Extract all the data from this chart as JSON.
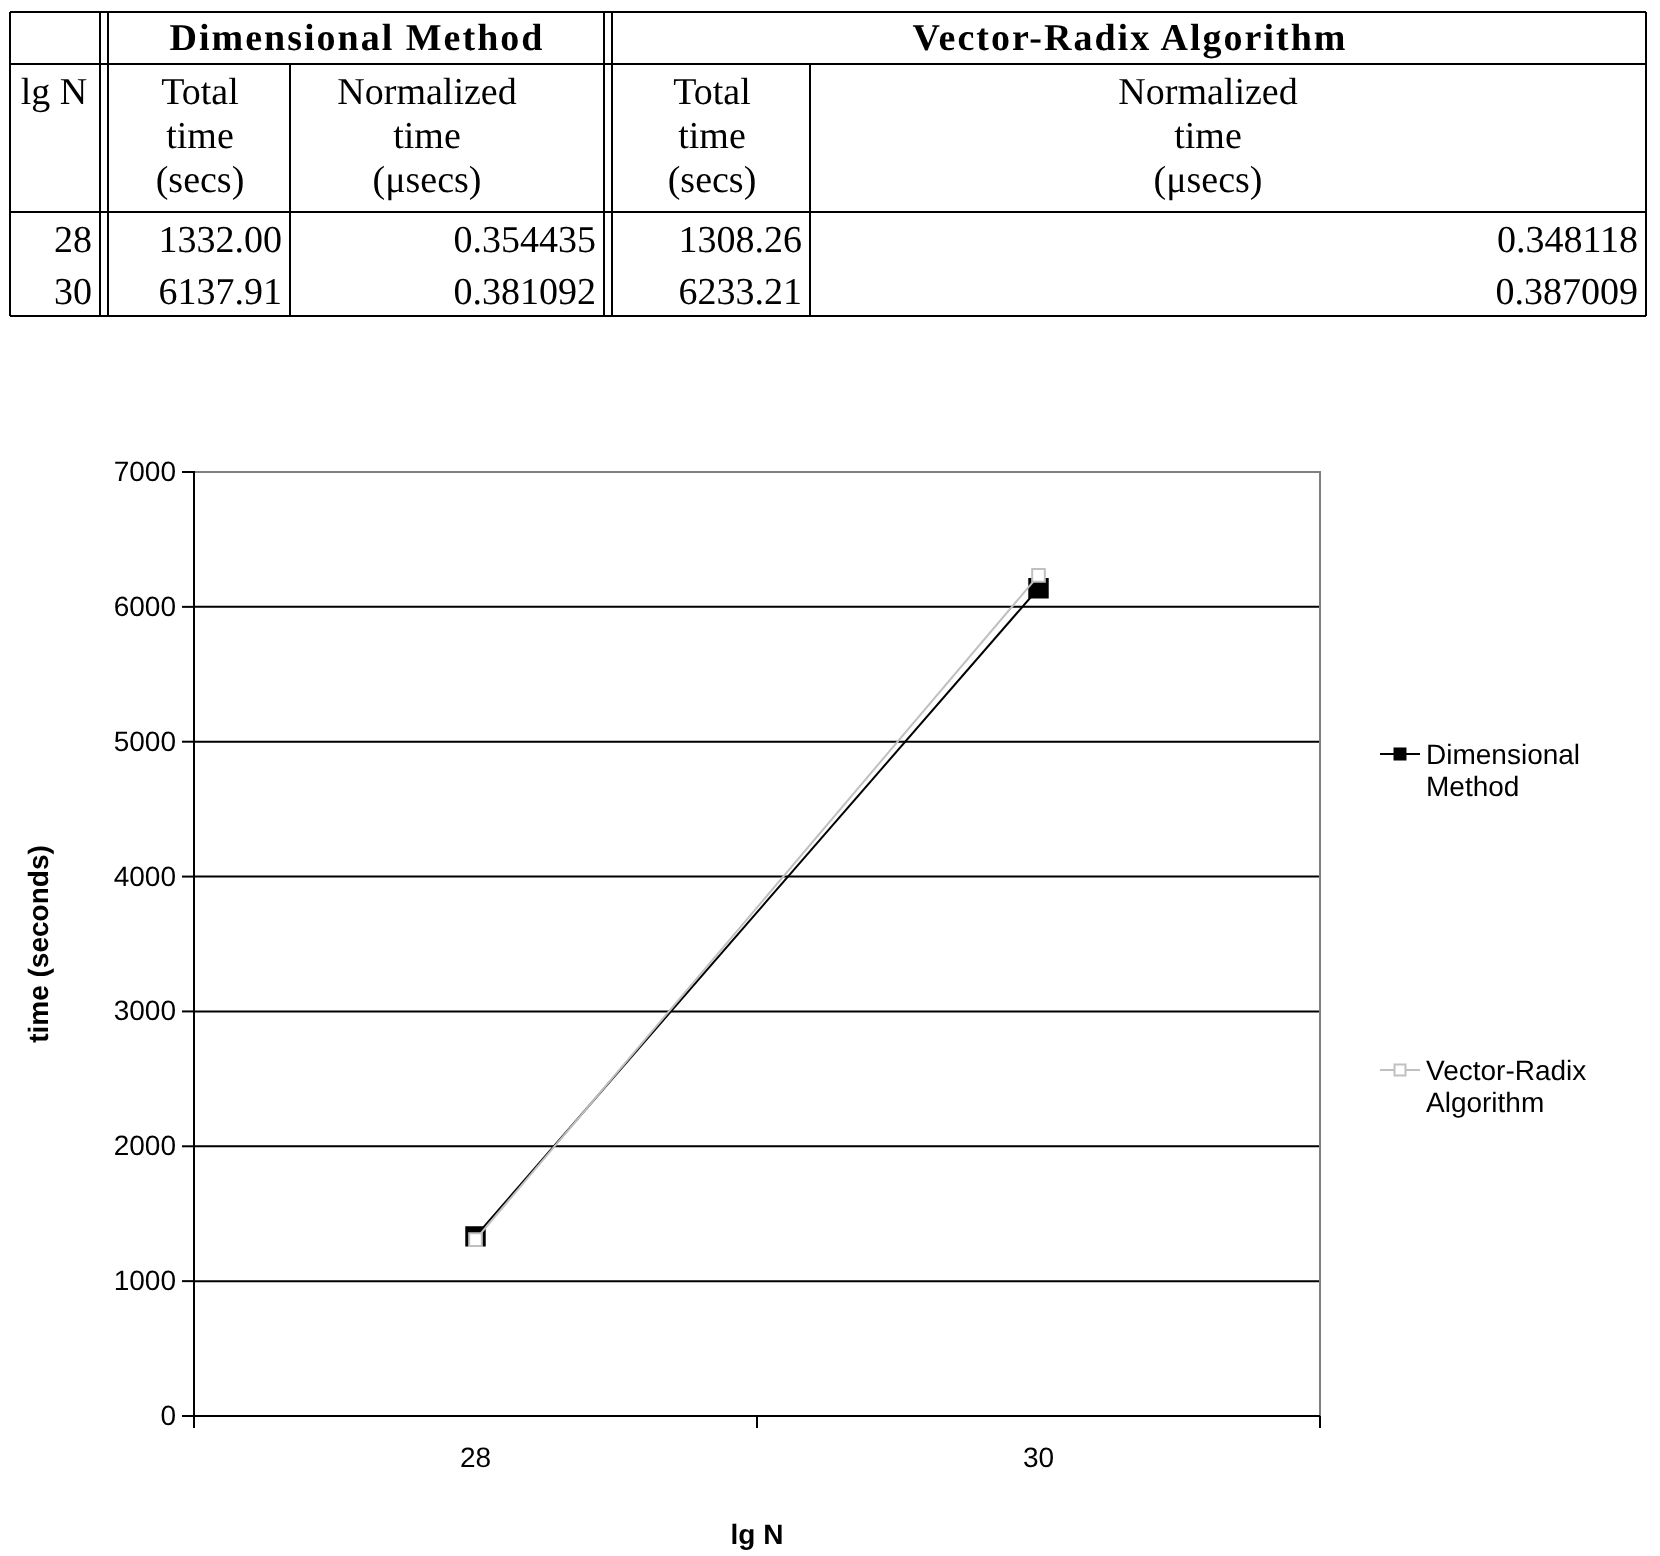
{
  "chart_data": [
    {
      "type": "other",
      "ylabel": "lg N",
      "annotations": [
        "Dimensional Method",
        "Vector-Radix Algorithm"
      ],
      "categories": [
        "28",
        "30"
      ],
      "data_labels": true,
      "series": [
        {
          "name": "Total time (secs)",
          "values": [
            1332.0,
            6137.91
          ],
          "value_labels": [
            "1332.00",
            "6137.91"
          ]
        },
        {
          "name": "Normalized time (μsecs)",
          "values": [
            0.354435,
            0.381092
          ]
        },
        {
          "name": "Total time (secs)",
          "values": [
            1308.26,
            6233.21
          ]
        },
        {
          "name": "Normalized time (μsecs)",
          "values": [
            0.348118,
            0.387009
          ]
        }
      ]
    },
    {
      "type": "line",
      "xlabel": "lg N",
      "ylabel": "time (seconds)",
      "categories": [
        "28",
        "30"
      ],
      "ylim": [
        0,
        7000
      ],
      "yticks": [
        0,
        1000,
        2000,
        3000,
        4000,
        5000,
        6000,
        7000
      ],
      "grid": "y",
      "legend": "right",
      "marker": "square",
      "series": [
        {
          "name": "Dimensional Method",
          "color": "#000000",
          "values": [
            1332.0,
            6137.91
          ]
        },
        {
          "name": "Vector-Radix Algorithm",
          "color": "#c0c0c0",
          "values": [
            1308.26,
            6233.21
          ]
        }
      ]
    }
  ]
}
